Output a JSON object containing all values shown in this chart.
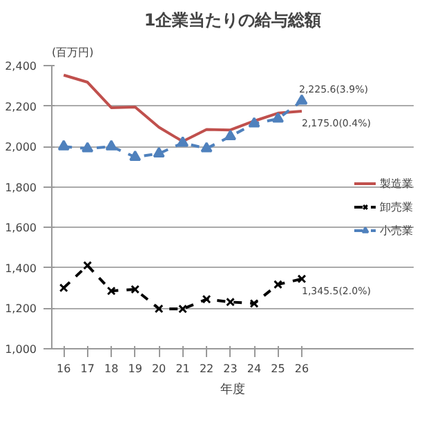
{
  "chart_data": {
    "type": "line",
    "title": "1企業当たりの給与総額",
    "ylabel": "(百万円)",
    "xlabel": "年度",
    "categories": [
      "16",
      "17",
      "18",
      "19",
      "20",
      "21",
      "22",
      "23",
      "24",
      "25",
      "26"
    ],
    "series": [
      {
        "name": "製造業",
        "color": "#c0504d",
        "line_style": "solid",
        "marker": "none",
        "values": [
          2353,
          2318,
          2192,
          2195,
          2095,
          2025,
          2084,
          2082,
          2126,
          2165,
          2175.0
        ]
      },
      {
        "name": "卸売業",
        "color": "#000000",
        "line_style": "dashed",
        "marker": "cross",
        "values": [
          1301,
          1412,
          1286,
          1294,
          1198,
          1197,
          1245,
          1231,
          1224,
          1318,
          1345.5
        ]
      },
      {
        "name": "小売業",
        "color": "#4f81bd",
        "line_style": "dashed",
        "marker": "triangle",
        "values": [
          2000,
          1990,
          2000,
          1948,
          1965,
          2018,
          1990,
          2050,
          2113,
          2137,
          2225.6
        ]
      }
    ],
    "ylim": [
      1000,
      2400
    ],
    "yticks": [
      {
        "value": 1000,
        "label": "1,000"
      },
      {
        "value": 1200,
        "label": "1,200"
      },
      {
        "value": 1400,
        "label": "1,400"
      },
      {
        "value": 1600,
        "label": "1,600"
      },
      {
        "value": 1800,
        "label": "1,800"
      },
      {
        "value": 2000,
        "label": "2,000"
      },
      {
        "value": 2200,
        "label": "2,200"
      },
      {
        "value": 2400,
        "label": "2,400"
      }
    ],
    "grid": "y",
    "legend": "right",
    "annotations": [
      {
        "text": "2,225.6(3.9%)",
        "x": "26",
        "y": 2225.6
      },
      {
        "text": "2,175.0(0.4%)",
        "x": "26",
        "y": 2175.0
      },
      {
        "text": "1,345.5(2.0%)",
        "x": "26",
        "y": 1345.5
      }
    ]
  }
}
